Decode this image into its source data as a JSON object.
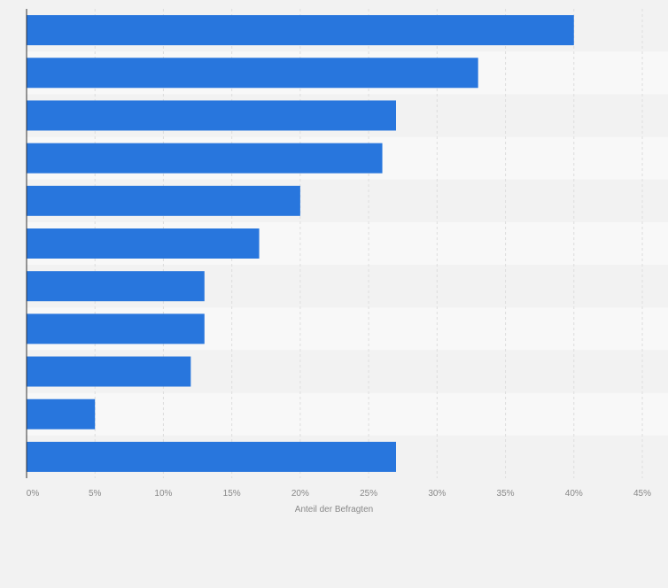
{
  "chart_data": {
    "type": "bar",
    "orientation": "horizontal",
    "categories": [
      "",
      "",
      "",
      "",
      "",
      "",
      "",
      "",
      "",
      "",
      ""
    ],
    "values": [
      40,
      33,
      27,
      26,
      20,
      17,
      13,
      13,
      12,
      5,
      27
    ],
    "xlim": [
      0,
      45
    ],
    "x_ticks": [
      0,
      5,
      10,
      15,
      20,
      25,
      30,
      35,
      40,
      45
    ],
    "x_tick_labels": [
      "0%",
      "5%",
      "10%",
      "15%",
      "20%",
      "25%",
      "30%",
      "35%",
      "40%",
      "45%"
    ],
    "xlabel": "Anteil der Befragten",
    "ylabel": "",
    "title": "",
    "grid": true,
    "colors": {
      "bar": "#2876dd",
      "band_dark": "#f2f2f2",
      "band_light": "#f8f8f8",
      "grid": "#dddddd",
      "axis": "#333333",
      "tick_text": "#888888"
    }
  }
}
